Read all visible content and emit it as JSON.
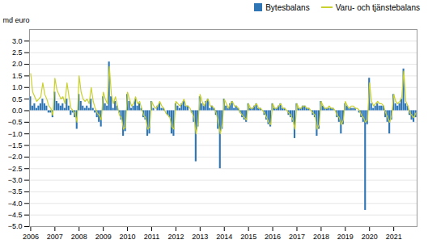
{
  "chart_data": {
    "type": "bar",
    "ylabel": "md euro",
    "categories": [
      "2006",
      null,
      null,
      null,
      null,
      null,
      null,
      null,
      null,
      null,
      null,
      null,
      "2007",
      null,
      null,
      null,
      null,
      null,
      null,
      null,
      null,
      null,
      null,
      null,
      "2008",
      null,
      null,
      null,
      null,
      null,
      null,
      null,
      null,
      null,
      null,
      null,
      "2009",
      null,
      null,
      null,
      null,
      null,
      null,
      null,
      null,
      null,
      null,
      null,
      "2010",
      null,
      null,
      null,
      null,
      null,
      null,
      null,
      null,
      null,
      null,
      null,
      "2011",
      null,
      null,
      null,
      null,
      null,
      null,
      null,
      null,
      null,
      null,
      null,
      "2012",
      null,
      null,
      null,
      null,
      null,
      null,
      null,
      null,
      null,
      null,
      null,
      "2013",
      null,
      null,
      null,
      null,
      null,
      null,
      null,
      null,
      null,
      null,
      null,
      "2014",
      null,
      null,
      null,
      null,
      null,
      null,
      null,
      null,
      null,
      null,
      null,
      "2015",
      null,
      null,
      null,
      null,
      null,
      null,
      null,
      null,
      null,
      null,
      null,
      "2016",
      null,
      null,
      null,
      null,
      null,
      null,
      null,
      null,
      null,
      null,
      null,
      "2017",
      null,
      null,
      null,
      null,
      null,
      null,
      null,
      null,
      null,
      null,
      null,
      "2018",
      null,
      null,
      null,
      null,
      null,
      null,
      null,
      null,
      null,
      null,
      null,
      "2019",
      null,
      null,
      null,
      null,
      null,
      null,
      null,
      null,
      null,
      null,
      null,
      "2020",
      null,
      null,
      null,
      null,
      null,
      null,
      null,
      null,
      null,
      null,
      null,
      "2021",
      null,
      null,
      null,
      null,
      null,
      null,
      null,
      null,
      null,
      null,
      null
    ],
    "series": [
      {
        "name": "Bytesbalans",
        "type": "bar",
        "color": "#2e75b6",
        "values": [
          0.6,
          0.2,
          0.3,
          0.1,
          0.2,
          0.3,
          0.5,
          0.3,
          0.2,
          -0.1,
          -0.1,
          -0.3,
          0.8,
          0.4,
          0.3,
          0.2,
          0.3,
          0.1,
          0.5,
          0.2,
          -0.2,
          -0.1,
          -0.3,
          -0.8,
          0.7,
          0.4,
          0.2,
          0.1,
          0.2,
          0.1,
          0.5,
          0.1,
          -0.1,
          -0.3,
          -0.5,
          -0.7,
          0.6,
          0.3,
          0.2,
          2.1,
          0.6,
          0.1,
          0.4,
          0.2,
          -0.1,
          -0.4,
          -1.1,
          -0.9,
          0.7,
          0.4,
          0.1,
          0.2,
          0.5,
          0.2,
          0.3,
          0.1,
          -0.3,
          -0.4,
          -1.1,
          -1.0,
          0.4,
          0.1,
          0.0,
          0.2,
          0.3,
          0.1,
          0.1,
          0.0,
          -0.2,
          -0.3,
          -1.0,
          -1.1,
          0.3,
          0.2,
          0.1,
          0.3,
          0.4,
          0.2,
          0.2,
          0.0,
          -0.1,
          -0.5,
          -2.2,
          -0.7,
          0.6,
          0.3,
          0.2,
          0.4,
          0.5,
          0.1,
          0.2,
          0.1,
          -0.2,
          -0.8,
          -2.5,
          -0.8,
          0.5,
          0.2,
          0.1,
          0.3,
          0.4,
          0.1,
          0.2,
          0.1,
          -0.1,
          -0.3,
          -0.4,
          -0.5,
          0.3,
          0.1,
          0.1,
          0.2,
          0.3,
          0.1,
          0.1,
          0.0,
          -0.2,
          -0.4,
          -0.6,
          -0.7,
          0.3,
          0.1,
          0.1,
          0.2,
          0.3,
          0.1,
          0.1,
          0.0,
          -0.2,
          -0.3,
          -0.5,
          -1.2,
          0.3,
          0.1,
          0.1,
          0.2,
          0.2,
          0.1,
          0.1,
          0.0,
          -0.2,
          -0.3,
          -1.1,
          -0.8,
          0.4,
          0.2,
          0.1,
          0.1,
          0.1,
          0.1,
          0.1,
          0.0,
          -0.3,
          -0.5,
          -1.0,
          -0.6,
          0.3,
          0.2,
          0.1,
          0.1,
          0.1,
          0.1,
          0.0,
          -0.1,
          -0.3,
          -0.5,
          -4.3,
          -0.6,
          1.4,
          0.3,
          0.1,
          0.2,
          0.3,
          0.2,
          0.2,
          0.2,
          -0.3,
          -0.5,
          -1.0,
          -0.4,
          0.7,
          0.3,
          0.2,
          0.3,
          0.5,
          1.8,
          0.3,
          0.2,
          -0.2,
          -0.4,
          -0.5,
          -0.3
        ]
      },
      {
        "name": "Varu- och tjänstebalans",
        "type": "line",
        "color": "#c9d12e",
        "values": [
          1.6,
          0.8,
          0.6,
          0.4,
          0.5,
          0.6,
          1.2,
          0.7,
          0.5,
          0.2,
          0.1,
          -0.2,
          1.4,
          0.9,
          0.7,
          0.5,
          0.6,
          0.3,
          1.2,
          0.6,
          0.1,
          0.0,
          -0.1,
          -0.5,
          1.5,
          0.8,
          0.5,
          0.4,
          0.5,
          0.3,
          1.0,
          0.4,
          0.1,
          -0.1,
          -0.2,
          -0.4,
          0.8,
          0.5,
          0.3,
          1.9,
          0.7,
          0.3,
          0.6,
          0.2,
          -0.2,
          -0.3,
          -0.8,
          -0.7,
          0.8,
          0.5,
          0.2,
          0.3,
          0.6,
          0.3,
          0.4,
          0.1,
          -0.2,
          -0.3,
          -0.8,
          -0.7,
          0.4,
          0.2,
          0.1,
          0.2,
          0.4,
          0.2,
          0.1,
          -0.1,
          -0.2,
          -0.3,
          -0.7,
          -0.8,
          0.4,
          0.3,
          0.2,
          0.3,
          0.5,
          0.2,
          0.2,
          0.1,
          -0.1,
          -0.3,
          -1.0,
          -0.5,
          0.7,
          0.4,
          0.2,
          0.4,
          0.5,
          0.2,
          0.2,
          0.1,
          -0.1,
          -0.5,
          -1.0,
          -0.6,
          0.5,
          0.3,
          0.1,
          0.3,
          0.4,
          0.2,
          0.2,
          0.1,
          -0.1,
          -0.2,
          -0.3,
          -0.4,
          0.3,
          0.1,
          0.1,
          0.2,
          0.3,
          0.1,
          0.1,
          0.0,
          -0.1,
          -0.3,
          -0.5,
          -0.6,
          0.3,
          0.1,
          0.1,
          0.2,
          0.3,
          0.1,
          0.1,
          0.0,
          -0.1,
          -0.2,
          -0.4,
          -0.8,
          0.3,
          0.1,
          0.1,
          0.2,
          0.2,
          0.1,
          0.1,
          0.0,
          -0.1,
          -0.2,
          -0.8,
          -0.6,
          0.4,
          0.2,
          0.1,
          0.1,
          0.2,
          0.1,
          0.1,
          0.0,
          -0.2,
          -0.3,
          -0.6,
          -0.4,
          0.4,
          0.2,
          0.1,
          0.2,
          0.2,
          0.1,
          0.1,
          0.0,
          -0.2,
          -0.3,
          -0.5,
          -0.4,
          1.2,
          0.4,
          0.2,
          0.3,
          0.4,
          0.3,
          0.3,
          0.2,
          -0.1,
          -0.3,
          -0.5,
          -0.2,
          0.7,
          0.4,
          0.3,
          0.4,
          0.6,
          1.7,
          0.4,
          0.2,
          -0.1,
          -0.2,
          -0.3,
          -0.1
        ]
      }
    ],
    "ylim": [
      -5.0,
      3.5
    ],
    "yticks": [
      {
        "value": 3.0,
        "label": "3.0"
      },
      2.5,
      {
        "value": 2.0,
        "label": "2.0"
      },
      1.5,
      {
        "value": 1.0,
        "label": "1.0"
      },
      0.5,
      {
        "value": 0.0,
        "label": "0.0"
      },
      {
        "value": -0.5,
        "label": "−0.5"
      },
      {
        "value": -1.0,
        "label": "−1.0"
      },
      {
        "value": -1.5,
        "label": "−1.5"
      },
      {
        "value": -2.0,
        "label": "−2.0"
      },
      {
        "value": -2.5,
        "label": "−2.5"
      },
      {
        "value": -3.0,
        "label": "−3.0"
      },
      {
        "value": -3.5,
        "label": "−3.5"
      },
      {
        "value": -4.0,
        "label": "−4.0"
      },
      {
        "value": -4.5,
        "label": "−4.5"
      },
      {
        "value": -5.0,
        "label": "−5.0"
      }
    ],
    "grid": true,
    "legend": "upper right"
  }
}
